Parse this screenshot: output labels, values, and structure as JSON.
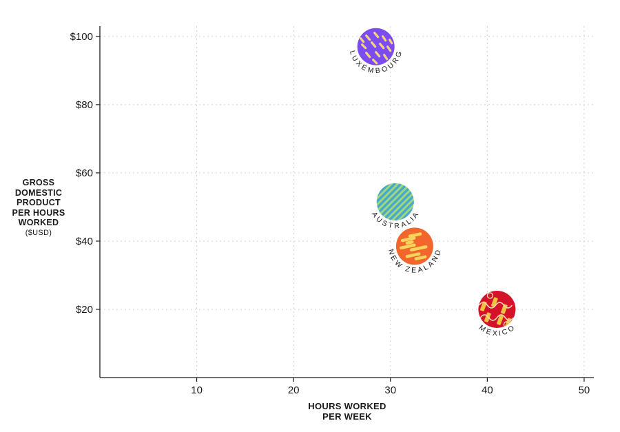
{
  "chart_data": {
    "type": "scatter",
    "title": "",
    "ylabel_lines": [
      "GROSS",
      "DOMESTIC",
      "PRODUCT",
      "PER HOURS",
      "WORKED"
    ],
    "ylabel_unit": "($USD)",
    "xlabel_lines": [
      "HOURS WORKED",
      "PER WEEK"
    ],
    "xlim": [
      0,
      51
    ],
    "ylim": [
      0,
      103
    ],
    "xticks": [
      10,
      20,
      30,
      40,
      50
    ],
    "xtick_labels": [
      "10",
      "20",
      "30",
      "40",
      "50"
    ],
    "yticks": [
      20,
      40,
      60,
      80,
      100
    ],
    "ytick_labels": [
      "$20",
      "$40",
      "$60",
      "$80",
      "$100"
    ],
    "grid": true,
    "points": [
      {
        "label": "LUXEMBOURG",
        "x": 28.5,
        "y": 97,
        "color": "#7b4cf0",
        "pattern": "dashes",
        "pattern_color": "#f5d37a"
      },
      {
        "label": "AUSTRALIA",
        "x": 30.5,
        "y": 51.5,
        "color": "#9ed97f",
        "pattern": "stripes",
        "pattern_color": "#4aa8c9"
      },
      {
        "label": "NEW ZEALAND",
        "x": 32.5,
        "y": 38.5,
        "color": "#f2652c",
        "pattern": "bars",
        "pattern_color": "#f6d45c"
      },
      {
        "label": "MEXICO",
        "x": 41,
        "y": 20,
        "color": "#d4122a",
        "pattern": "squiggles",
        "pattern_color": "#f0c23f"
      }
    ]
  }
}
